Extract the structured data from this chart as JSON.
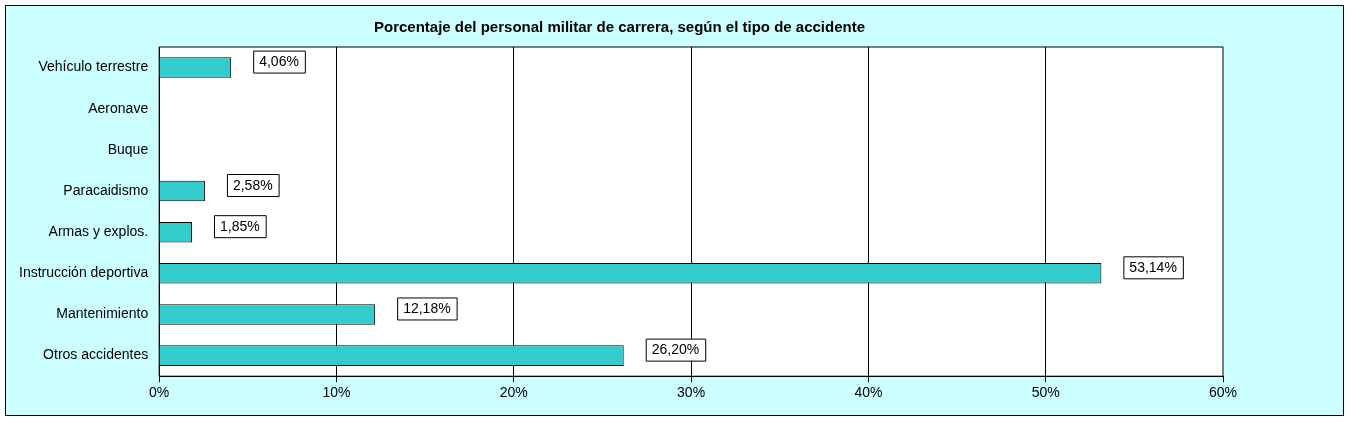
{
  "chart_data": {
    "type": "bar",
    "orientation": "horizontal",
    "title": "Porcentaje del personal militar de carrera, según el tipo de accidente",
    "categories": [
      "Vehículo terrestre",
      "Aeronave",
      "Buque",
      "Paracaidismo",
      "Armas y explos.",
      "Instrucción deportiva",
      "Mantenimiento",
      "Otros accidentes"
    ],
    "values": [
      4.06,
      0,
      0,
      2.58,
      1.85,
      53.14,
      12.18,
      26.2
    ],
    "value_labels": [
      "4,06%",
      null,
      null,
      "2,58%",
      "1,85%",
      "53,14%",
      "12,18%",
      "26,20%"
    ],
    "color": "#33cccc",
    "xlim": [
      0,
      60
    ],
    "xticks": [
      {
        "value": 0,
        "label": "0%"
      },
      {
        "value": 10,
        "label": "10%"
      },
      {
        "value": 20,
        "label": "20%"
      },
      {
        "value": 30,
        "label": "30%"
      },
      {
        "value": 40,
        "label": "40%"
      },
      {
        "value": 50,
        "label": "50%"
      },
      {
        "value": 60,
        "label": "60%"
      }
    ],
    "grid": "x",
    "legend": false
  }
}
